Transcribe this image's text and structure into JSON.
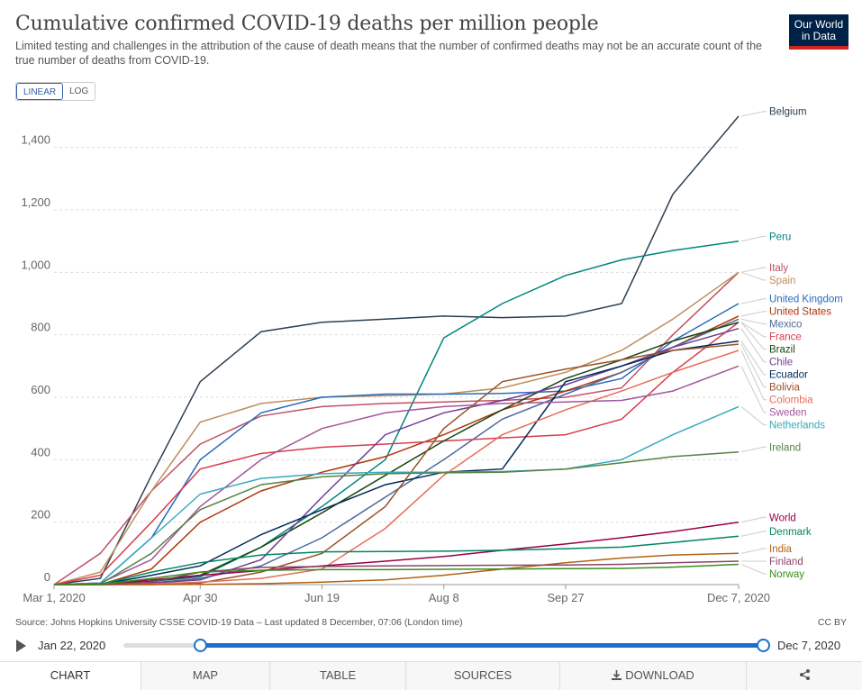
{
  "header": {
    "title": "Cumulative confirmed COVID-19 deaths per million people",
    "subtitle": "Limited testing and challenges in the attribution of the cause of death means that the number of confirmed deaths may not be an accurate count of the true number of deaths from COVID-19.",
    "logo_line1": "Our World",
    "logo_line2": "in Data"
  },
  "scale_toggle": {
    "linear": "LINEAR",
    "log": "LOG",
    "selected": "LINEAR"
  },
  "chart_data": {
    "type": "line",
    "x_ticks": [
      "Mar 1, 2020",
      "Apr 30",
      "Jun 19",
      "Aug 8",
      "Sep 27",
      "Dec 7, 2020"
    ],
    "y_ticks": [
      "0",
      "200",
      "400",
      "600",
      "800",
      "1,000",
      "1,200",
      "1,400"
    ],
    "ylim": [
      0,
      1500
    ],
    "grid": "horizontal dashed",
    "legend": "labels at right end of lines",
    "x_dates": [
      "2020-03-01",
      "2020-03-20",
      "2020-04-10",
      "2020-04-30",
      "2020-05-25",
      "2020-06-19",
      "2020-07-15",
      "2020-08-08",
      "2020-09-01",
      "2020-09-27",
      "2020-10-20",
      "2020-11-10",
      "2020-12-07"
    ],
    "series": [
      {
        "name": "Belgium",
        "color": "#2c3e50",
        "values": [
          0,
          20,
          350,
          650,
          810,
          840,
          850,
          860,
          855,
          860,
          900,
          1250,
          1500
        ]
      },
      {
        "name": "Peru",
        "color": "#00847e",
        "values": [
          0,
          0,
          10,
          25,
          120,
          250,
          400,
          790,
          900,
          990,
          1040,
          1070,
          1100
        ]
      },
      {
        "name": "Italy",
        "color": "#c15065",
        "values": [
          0,
          100,
          300,
          450,
          540,
          570,
          580,
          585,
          590,
          600,
          630,
          800,
          1000
        ]
      },
      {
        "name": "Spain",
        "color": "#bc8e5a",
        "values": [
          0,
          40,
          300,
          520,
          580,
          600,
          605,
          610,
          630,
          680,
          750,
          850,
          1000
        ]
      },
      {
        "name": "United Kingdom",
        "color": "#286bbb",
        "values": [
          0,
          5,
          150,
          400,
          550,
          600,
          610,
          610,
          612,
          620,
          660,
          780,
          900
        ]
      },
      {
        "name": "United States",
        "color": "#b13507",
        "values": [
          0,
          0,
          50,
          200,
          300,
          360,
          410,
          480,
          560,
          620,
          680,
          760,
          860
        ]
      },
      {
        "name": "Mexico",
        "color": "#4c6a9c",
        "values": [
          0,
          0,
          5,
          20,
          60,
          150,
          280,
          400,
          530,
          610,
          680,
          760,
          850
        ]
      },
      {
        "name": "France",
        "color": "#d73c50",
        "values": [
          0,
          30,
          200,
          370,
          420,
          440,
          450,
          460,
          470,
          480,
          530,
          680,
          840
        ]
      },
      {
        "name": "Brazil",
        "color": "#18470f",
        "values": [
          0,
          0,
          10,
          30,
          120,
          230,
          350,
          460,
          560,
          660,
          720,
          780,
          840
        ]
      },
      {
        "name": "Chile",
        "color": "#6d3e91",
        "values": [
          0,
          0,
          5,
          15,
          80,
          280,
          480,
          550,
          590,
          640,
          700,
          760,
          820
        ]
      },
      {
        "name": "Ecuador",
        "color": "#00295b",
        "values": [
          0,
          0,
          30,
          60,
          160,
          240,
          320,
          360,
          370,
          650,
          700,
          750,
          780
        ]
      },
      {
        "name": "Bolivia",
        "color": "#9a5129",
        "values": [
          0,
          0,
          0,
          5,
          40,
          100,
          250,
          500,
          650,
          690,
          720,
          750,
          770
        ]
      },
      {
        "name": "Colombia",
        "color": "#e56e5a",
        "values": [
          0,
          0,
          2,
          8,
          20,
          50,
          180,
          350,
          480,
          560,
          620,
          680,
          750
        ]
      },
      {
        "name": "Sweden",
        "color": "#a2559c",
        "values": [
          0,
          5,
          80,
          250,
          400,
          500,
          550,
          570,
          580,
          585,
          590,
          620,
          700
        ]
      },
      {
        "name": "Netherlands",
        "color": "#38aaba",
        "values": [
          0,
          5,
          150,
          290,
          340,
          355,
          360,
          360,
          362,
          370,
          400,
          480,
          570
        ]
      },
      {
        "name": "Ireland",
        "color": "#578145",
        "values": [
          0,
          2,
          100,
          240,
          320,
          345,
          355,
          358,
          360,
          370,
          390,
          410,
          425
        ]
      },
      {
        "name": "World",
        "color": "#970046",
        "values": [
          0,
          2,
          15,
          30,
          45,
          60,
          75,
          90,
          110,
          130,
          150,
          170,
          200
        ]
      },
      {
        "name": "Denmark",
        "color": "#00875e",
        "values": [
          0,
          1,
          40,
          70,
          95,
          105,
          106,
          107,
          110,
          115,
          120,
          135,
          155
        ]
      },
      {
        "name": "India",
        "color": "#b16214",
        "values": [
          0,
          0,
          0,
          1,
          3,
          8,
          15,
          30,
          50,
          70,
          85,
          95,
          100
        ]
      },
      {
        "name": "Finland",
        "color": "#8c4569",
        "values": [
          0,
          0,
          8,
          40,
          55,
          58,
          60,
          61,
          62,
          63,
          65,
          70,
          75
        ]
      },
      {
        "name": "Norway",
        "color": "#3b8e1d",
        "values": [
          0,
          1,
          20,
          40,
          46,
          48,
          48,
          49,
          50,
          51,
          52,
          56,
          65
        ]
      }
    ]
  },
  "footer": {
    "source": "Source: Johns Hopkins University CSSE COVID-19 Data – Last updated 8 December, 07:06 (London time)",
    "license": "CC BY"
  },
  "timeline": {
    "start_label": "Jan 22, 2020",
    "end_label": "Dec 7, 2020",
    "start_fraction": 0.12,
    "end_fraction": 1.0
  },
  "tabs": [
    {
      "label": "CHART",
      "icon": "",
      "active": true
    },
    {
      "label": "MAP",
      "icon": "",
      "active": false
    },
    {
      "label": "TABLE",
      "icon": "",
      "active": false
    },
    {
      "label": "SOURCES",
      "icon": "",
      "active": false
    },
    {
      "label": "DOWNLOAD",
      "icon": "download-icon",
      "active": false
    },
    {
      "label": "",
      "icon": "share-icon",
      "active": false
    }
  ]
}
